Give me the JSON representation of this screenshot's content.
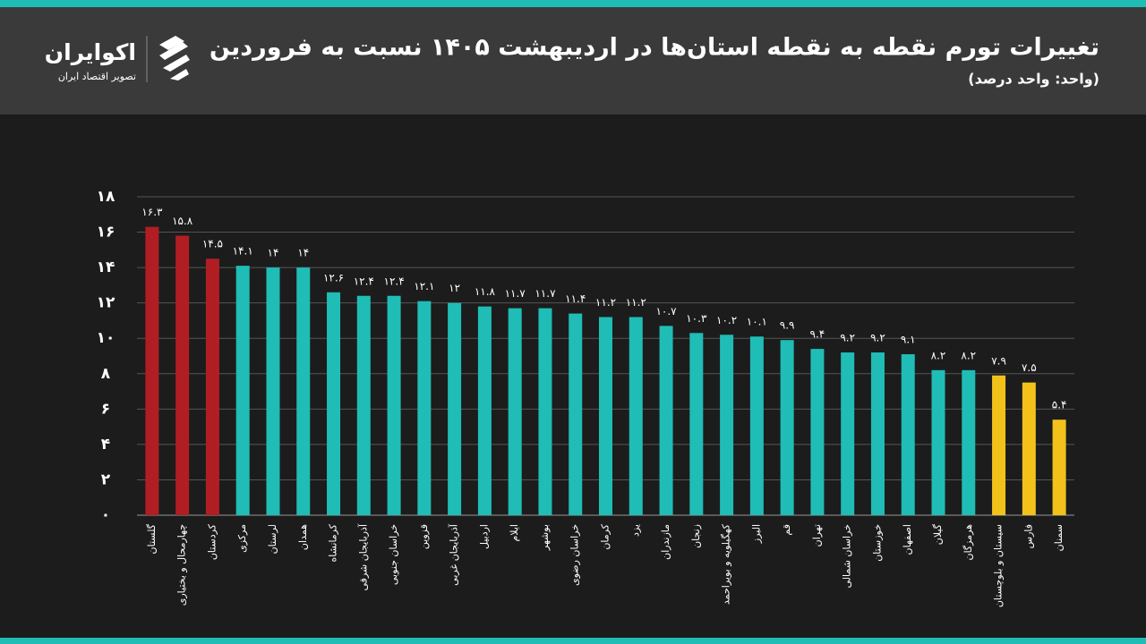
{
  "header": {
    "logo_name": "اکوایران",
    "logo_tagline": "تصویر اقتصاد ایران"
  },
  "chart_data": {
    "type": "bar",
    "title": "تغییرات تورم نقطه به نقطه استان‌ها در اردیبهشت ۱۴۰۵ نسبت به فروردین",
    "subtitle": "(واحد: واحد درصد)",
    "categories": [
      "گلستان",
      "چهارمحال و بختیاری",
      "کردستان",
      "مرکزی",
      "لرستان",
      "همدان",
      "کرمانشاه",
      "آذربایجان شرقی",
      "خراسان جنوبی",
      "قزوین",
      "آذربایجان غربی",
      "اردبیل",
      "ایلام",
      "بوشهر",
      "خراسان رضوی",
      "کرمان",
      "یزد",
      "مازندران",
      "زنجان",
      "کهگیلویه و بویراحمد",
      "البرز",
      "قم",
      "تهران",
      "خراسان شمالی",
      "خوزستان",
      "اصفهان",
      "گیلان",
      "هرمزگان",
      "سیستان و بلوچستان",
      "فارس",
      "سمنان"
    ],
    "values": [
      16.3,
      15.8,
      14.5,
      14.1,
      14,
      14,
      12.6,
      12.4,
      12.4,
      12.1,
      12,
      11.8,
      11.7,
      11.7,
      11.4,
      11.2,
      11.2,
      10.7,
      10.3,
      10.2,
      10.1,
      9.9,
      9.4,
      9.2,
      9.2,
      9.1,
      8.2,
      8.2,
      7.9,
      7.5,
      5.4
    ],
    "value_labels": [
      "۱۶.۳",
      "۱۵.۸",
      "۱۴.۵",
      "۱۴.۱",
      "۱۴",
      "۱۴",
      "۱۲.۶",
      "۱۲.۴",
      "۱۲.۴",
      "۱۲.۱",
      "۱۲",
      "۱۱.۸",
      "۱۱.۷",
      "۱۱.۷",
      "۱۱.۴",
      "۱۱.۲",
      "۱۱.۲",
      "۱۰.۷",
      "۱۰.۳",
      "۱۰.۲",
      "۱۰.۱",
      "۹.۹",
      "۹.۴",
      "۹.۲",
      "۹.۲",
      "۹.۱",
      "۸.۲",
      "۸.۲",
      "۷.۹",
      "۷.۵",
      "۵.۴"
    ],
    "colors": [
      "#b01e23",
      "#b01e23",
      "#b01e23",
      "#1fbdb5",
      "#1fbdb5",
      "#1fbdb5",
      "#1fbdb5",
      "#1fbdb5",
      "#1fbdb5",
      "#1fbdb5",
      "#1fbdb5",
      "#1fbdb5",
      "#1fbdb5",
      "#1fbdb5",
      "#1fbdb5",
      "#1fbdb5",
      "#1fbdb5",
      "#1fbdb5",
      "#1fbdb5",
      "#1fbdb5",
      "#1fbdb5",
      "#1fbdb5",
      "#1fbdb5",
      "#1fbdb5",
      "#1fbdb5",
      "#1fbdb5",
      "#1fbdb5",
      "#1fbdb5",
      "#f2c21b",
      "#f2c21b",
      "#f2c21b"
    ],
    "ylim": [
      0,
      18
    ],
    "yticks": [
      {
        "value": 0,
        "label": "۰"
      },
      {
        "value": 2,
        "label": "۲"
      },
      {
        "value": 4,
        "label": "۴"
      },
      {
        "value": 6,
        "label": "۶"
      },
      {
        "value": 8,
        "label": "۸"
      },
      {
        "value": 10,
        "label": "۱۰"
      },
      {
        "value": 12,
        "label": "۱۲"
      },
      {
        "value": 14,
        "label": "۱۴"
      },
      {
        "value": 16,
        "label": "۱۶"
      },
      {
        "value": 18,
        "label": "۱۸"
      }
    ],
    "grid": true
  }
}
